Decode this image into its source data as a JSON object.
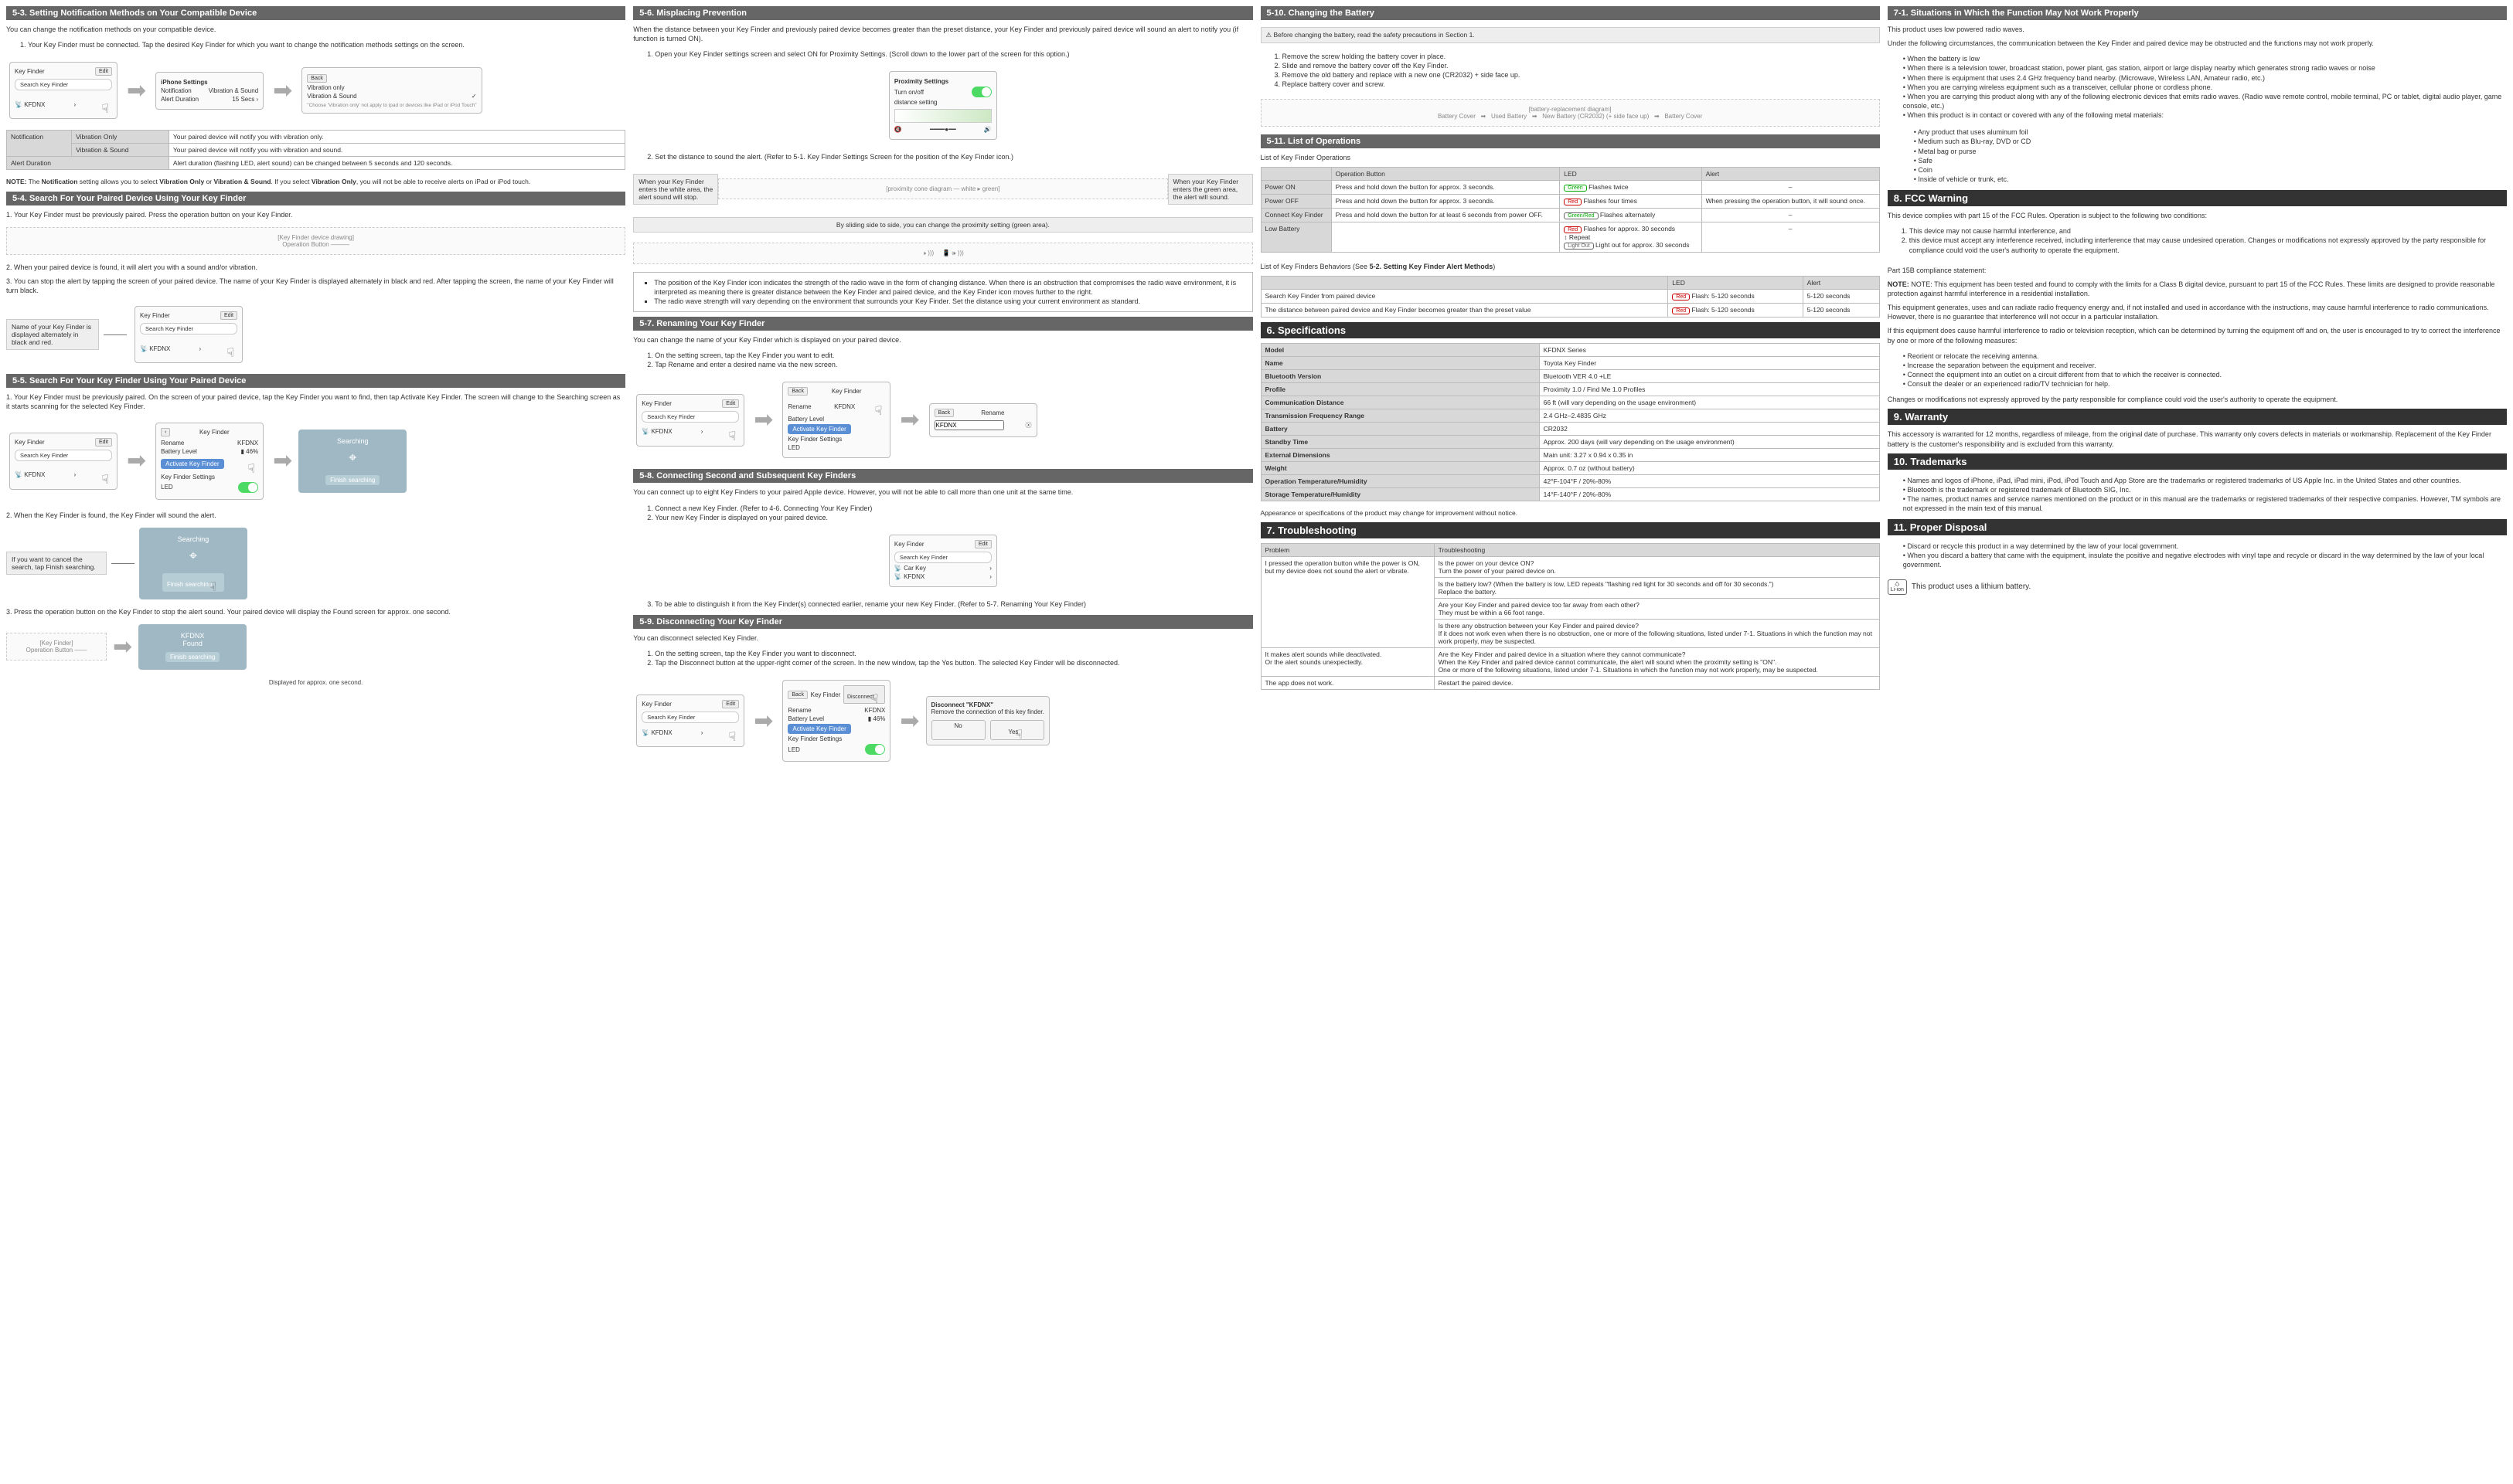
{
  "col1": {
    "s5_3": {
      "header": "5-3. Setting Notification Methods on Your Compatible Device",
      "intro": "You can change the notification methods on your compatible device.",
      "step1": "Your Key Finder must be connected. Tap the desired Key Finder for which you want to change the notification methods settings on the screen.",
      "mock1": {
        "title": "Key Finder",
        "edit": "Edit",
        "search": "Search Key Finder",
        "item": "KFDNX"
      },
      "mock2": {
        "title": "iPhone Settings",
        "notif": "Notification",
        "notif_val": "Vibration & Sound",
        "alert": "Alert Duration",
        "alert_val": "15 Secs"
      },
      "mock3": {
        "back": "Back",
        "opt1": "Vibration only",
        "opt2": "Vibration & Sound",
        "check": "✓",
        "note": "\"Choose 'Vibration only' not apply to ipad or devices like iPad or iPod Touch\""
      },
      "table": {
        "r1c1": "Notification",
        "r1c2": "Vibration Only",
        "r1c3": "Your paired device will notify you with vibration only.",
        "r2c2": "Vibration & Sound",
        "r2c3": "Your paired device will notify you with vibration and sound.",
        "r3c1": "Alert Duration",
        "r3c3": "Alert duration (flashing LED, alert sound) can be changed between 5 seconds and 120 seconds."
      },
      "note": "NOTE: The Notification setting allows you to select Vibration Only or Vibration & Sound. If you select Vibration Only, you will not be able to receive alerts on iPad or iPod touch."
    },
    "s5_4": {
      "header": "5-4. Search For Your Paired Device Using Your Key Finder",
      "step1": "Your Key Finder must be previously paired. Press the operation button on your Key Finder.",
      "label1": "Operation Button",
      "step2": "When your paired device is found, it will alert you with a sound and/or vibration.",
      "step3": "You can stop the alert by tapping the screen of your paired device. The name of your Key Finder is displayed alternately in black and red. After tapping the screen, the name of your Key Finder will turn black.",
      "label2": "Name of your Key Finder is displayed alternately in black and red.",
      "mock": {
        "title": "Key Finder",
        "edit": "Edit",
        "search": "Search Key Finder",
        "item": "KFDNX"
      }
    },
    "s5_5": {
      "header": "5-5. Search For Your Key Finder Using Your Paired Device",
      "step1": "Your Key Finder must be previously paired. On the screen of your paired device, tap the Key Finder you want to find, then tap Activate Key Finder. The screen will change to the Searching screen as it starts scanning for the selected Key Finder.",
      "mock1": {
        "title": "Key Finder",
        "edit": "Edit",
        "search": "Search Key Finder",
        "item": "KFDNX"
      },
      "mock2": {
        "title": "Key Finder",
        "rename": "Rename",
        "name": "KFDNX",
        "batt": "Battery Level",
        "batt_val": "46%",
        "activate": "Activate Key Finder",
        "kfs": "Key Finder Settings",
        "led": "LED"
      },
      "searching": {
        "title": "Searching",
        "finish": "Finish searching"
      },
      "step2": "When the Key Finder is found, the Key Finder will sound the alert.",
      "cancel_note": "If you want to cancel the search, tap Finish searching.",
      "step3": "Press the operation button on the Key Finder to stop the alert sound. Your paired device will display the Found screen for approx. one second.",
      "op_label": "Operation Button",
      "found": {
        "title": "KFDNX",
        "sub": "Found",
        "finish": "Finish searching"
      },
      "disp": "Displayed for approx. one second."
    }
  },
  "col2": {
    "s5_6": {
      "header": "5-6. Misplacing Prevention",
      "intro": "When the distance between your Key Finder and previously paired device becomes greater than the preset distance, your Key Finder and previously paired device will sound an alert to notify you (if function is turned ON).",
      "step1": "Open your Key Finder settings screen and select ON for Proximity Settings. (Scroll down to the lower part of the screen for this option.)",
      "mock": {
        "prox": "Proximity Settings",
        "turn": "Turn on/off",
        "dist": "distance setting"
      },
      "step2": "Set the distance to sound the alert. (Refer to 5-1. Key Finder Settings Screen for the position of the Key Finder icon.)",
      "box_left": "When your Key Finder enters the white area, the alert sound will stop.",
      "box_right": "When your Key Finder enters the green area, the alert will sound.",
      "slide_caption": "By sliding side to side, you can change the proximity setting (green area).",
      "bullets": {
        "b1": "The position of the Key Finder icon indicates the strength of the radio wave in the form of changing distance. When there is an obstruction that compromises the radio wave environment, it is interpreted as meaning there is greater distance between the Key Finder and paired device, and the Key Finder icon moves further to the right.",
        "b2": "The radio wave strength will vary depending on the environment that surrounds your Key Finder. Set the distance using your current environment as standard."
      }
    },
    "s5_7": {
      "header": "5-7. Renaming Your Key Finder",
      "intro": "You can change the name of your Key Finder which is displayed on your paired device.",
      "step1": "On the setting screen, tap the Key Finder you want to edit.",
      "step2": "Tap Rename and enter a desired name via the new screen.",
      "mock1": {
        "title": "Key Finder",
        "edit": "Edit",
        "search": "Search Key Finder",
        "item": "KFDNX"
      },
      "mock2": {
        "back": "Back",
        "title": "Key Finder",
        "rename": "Rename",
        "name": "KFDNX",
        "batt": "Battery Level",
        "activate": "Activate Key Finder",
        "kfs": "Key Finder Settings",
        "led": "LED"
      },
      "mock3": {
        "back": "Back",
        "title": "Rename",
        "field": "KFDNX"
      }
    },
    "s5_8": {
      "header": "5-8. Connecting Second and Subsequent Key Finders",
      "intro": "You can connect up to eight Key Finders to your paired Apple device. However, you will not be able to call more than one unit at the same time.",
      "step1": "Connect a new Key Finder. (Refer to 4-6. Connecting Your Key Finder)",
      "step2": "Your new Key Finder is displayed on your paired device.",
      "mock": {
        "title": "Key Finder",
        "edit": "Edit",
        "search": "Search Key Finder",
        "item1": "Car Key",
        "item2": "KFDNX"
      },
      "step3": "To be able to distinguish it from the Key Finder(s) connected earlier, rename your new Key Finder. (Refer to 5-7. Renaming Your Key Finder)"
    },
    "s5_9": {
      "header": "5-9. Disconnecting Your Key Finder",
      "intro": "You can disconnect selected Key Finder.",
      "step1": "On the setting screen, tap the Key Finder you want to disconnect.",
      "step2": "Tap the Disconnect button at the upper-right corner of the screen. In the new window, tap the Yes button. The selected Key Finder will be disconnected.",
      "mock1": {
        "title": "Key Finder",
        "edit": "Edit",
        "search": "Search Key Finder",
        "item": "KFDNX"
      },
      "mock2": {
        "back": "Back",
        "title": "Key Finder",
        "disc": "Disconnect",
        "rename": "Rename",
        "name": "KFDNX",
        "batt": "Battery Level",
        "batt_val": "46%",
        "activate": "Activate Key Finder",
        "kfs": "Key Finder Settings",
        "led": "LED"
      },
      "dialog": {
        "title": "Disconnect \"KFDNX\"",
        "msg": "Remove the connection of this key finder.",
        "no": "No",
        "yes": "Yes"
      }
    }
  },
  "col3": {
    "s5_10": {
      "header": "5-10. Changing the Battery",
      "warn": "Before changing the battery, read the safety precautions in Section 1.",
      "steps": [
        "Remove the screw holding the battery cover in place.",
        "Slide and remove the battery cover off the Key Finder.",
        "Remove the old battery and replace with a new one (CR2032) + side face up.",
        "Replace battery cover and screw."
      ],
      "labels": {
        "l1": "Battery Cover",
        "l2": "Used Battery",
        "l3": "New Battery (CR2032) (+ side face up)",
        "l4": "Battery Cover"
      }
    },
    "s5_11": {
      "header": "5-11. List of Operations",
      "t1_caption": "List of Key Finder Operations",
      "t1": {
        "h1": "Operation Button",
        "h2": "LED",
        "h3": "Alert",
        "r1": {
          "c0": "Power ON",
          "c1": "Press and hold down the button for approx. 3 seconds.",
          "led": "Green",
          "c2": "Flashes twice",
          "c3": "–"
        },
        "r2": {
          "c0": "Power OFF",
          "c1": "Press and hold down the button for approx. 3 seconds.",
          "led": "Red",
          "c2": "Flashes four times",
          "c3": "When pressing the operation button, it will sound once."
        },
        "r3": {
          "c0": "Connect Key Finder",
          "c1": "Press and hold down the button for at least 6 seconds from power OFF.",
          "led": "Green/Red",
          "c2": "Flashes alternately",
          "c3": "–"
        },
        "r4": {
          "c0": "Low Battery",
          "c1": "",
          "led1": "Red",
          "c2a": "Flashes for approx. 30 seconds",
          "rep": "↕ Repeat",
          "led2": "Light Out",
          "c2b": "Light out for approx. 30 seconds",
          "c3": "–"
        }
      },
      "t2_caption": "List of Key Finders Behaviors (See 5-2. Setting Key Finder Alert Methods)",
      "t2": {
        "h2": "LED",
        "h3": "Alert",
        "r1": {
          "c1": "Search Key Finder from paired device",
          "led": "Red",
          "c2": "Flash: 5-120 seconds",
          "c3": "5-120 seconds"
        },
        "r2": {
          "c1": "The distance between paired device and Key Finder becomes greater than the preset value",
          "led": "Red",
          "c2": "Flash: 5-120 seconds",
          "c3": "5-120 seconds"
        }
      }
    },
    "s6": {
      "header": "6. Specifications",
      "rows": [
        [
          "Model",
          "KFDNX Series"
        ],
        [
          "Name",
          "Toyota Key Finder"
        ],
        [
          "Bluetooth Version",
          "Bluetooth VER 4.0 +LE"
        ],
        [
          "Profile",
          "Proximity 1.0 / Find Me 1.0 Profiles"
        ],
        [
          "Communication Distance",
          "66 ft (will vary depending on the usage environment)"
        ],
        [
          "Transmission Frequency Range",
          "2.4 GHz–2.4835 GHz"
        ],
        [
          "Battery",
          "CR2032"
        ],
        [
          "Standby Time",
          "Approx. 200 days (will vary depending on the usage environment)"
        ],
        [
          "External Dimensions",
          "Main unit: 3.27 x 0.94 x 0.35 in"
        ],
        [
          "Weight",
          "Approx. 0.7 oz (without battery)"
        ],
        [
          "Operation Temperature/Humidity",
          "42°F-104°F / 20%-80%"
        ],
        [
          "Storage Temperature/Humidity",
          "14°F-140°F / 20%-80%"
        ]
      ],
      "footer": "Appearance or specifications of the product may change for improvement without notice."
    },
    "s7": {
      "header": "7. Troubleshooting",
      "h1": "Problem",
      "h2": "Troubleshooting",
      "r1": {
        "p": "I pressed the operation button while the power is ON, but my device does not sound the alert or vibrate.",
        "a1": "Is the power on your device ON?\nTurn the power of your paired device on.",
        "a2": "Is the battery low? (When the battery is low, LED repeats \"flashing red light for 30 seconds and off for 30 seconds.\")\nReplace the battery.",
        "a3": "Are your Key Finder and paired device too far away from each other?\nThey must be within a 66 foot range.",
        "a4": "Is there any obstruction between your Key Finder and paired device?\nIf it does not work even when there is no obstruction, one or more of the following situations, listed under 7-1. Situations in which the function may not work properly, may be suspected."
      },
      "r2": {
        "p": "It makes alert sounds while deactivated.\nOr the alert sounds unexpectedly.",
        "a1": "Are the Key Finder and paired device in a situation where they cannot communicate?\nWhen the Key Finder and paired device cannot communicate, the alert will sound when the proximity setting is \"ON\".\nOne or more of the following situations, listed under 7-1. Situations in which the function may not work properly, may be suspected."
      },
      "r3": {
        "p": "The app does not work.",
        "a1": "Restart the paired device."
      }
    }
  },
  "col4": {
    "s7_1": {
      "header": "7-1. Situations in Which the Function May Not Work Properly",
      "p1": "This product uses low powered radio waves.",
      "p2": "Under the following circumstances, the communication between the Key Finder and paired device may be obstructed and the functions may not work properly.",
      "b": [
        "When the battery is low",
        "When there is a television tower, broadcast station, power plant, gas station, airport or large display nearby which generates strong radio waves or noise",
        "When there is equipment that uses 2.4 GHz frequency band nearby. (Microwave, Wireless LAN, Amateur radio, etc.)",
        "When you are carrying wireless equipment such as a transceiver, cellular phone or cordless phone.",
        "When you are carrying this product along with any of the following electronic devices that emits radio waves. (Radio wave remote control, mobile terminal, PC or tablet, digital audio player, game console, etc.)",
        "When this product is in contact or covered with any of the following metal materials:"
      ],
      "sub": [
        "Any product that uses aluminum foil",
        "Medium such as Blu-ray, DVD or CD",
        "Metal bag or purse",
        "Safe",
        "Coin",
        "Inside of vehicle or trunk, etc."
      ]
    },
    "s8": {
      "header": "8. FCC Warning",
      "p1": "This device complies with part 15 of the FCC Rules. Operation is subject to the following two conditions:",
      "ol": [
        "This device may not cause harmful interference, and",
        "this device must accept any interference received, including interference that may cause undesired operation. Changes or modifications not expressly approved by the party responsible for compliance could void the user's authority to operate the equipment."
      ],
      "p2": "Part 15B compliance statement:",
      "p3": "NOTE: This equipment has been tested and found to comply with the limits for a Class B digital device, pursuant to part 15 of the FCC Rules. These limits are designed to provide reasonable protection against harmful interference in a residential installation.",
      "p4": "This equipment generates, uses and can radiate radio frequency energy and, if not installed and used in accordance with the instructions, may cause harmful interference to radio communications. However, there is no guarantee that interference will not occur in a particular installation.",
      "p5": "If this equipment does cause harmful interference to radio or television reception, which can be determined by turning the equipment off and on, the user is encouraged to try to correct the interference by one or more of the following measures:",
      "b": [
        "Reorient or relocate the receiving antenna.",
        "Increase the separation between the equipment and receiver.",
        "Connect the equipment into an outlet on a circuit different from that to which the receiver is connected.",
        "Consult the dealer or an experienced radio/TV technician for help."
      ],
      "p6": "Changes or modifications not expressly approved by the party responsible for compliance could void the user's authority to operate the equipment."
    },
    "s9": {
      "header": "9. Warranty",
      "p": "This accessory is warranted for 12 months, regardless of mileage, from the original date of purchase. This warranty only covers defects in materials or workmanship. Replacement of the Key Finder battery is the customer's responsibility and is excluded from this warranty."
    },
    "s10": {
      "header": "10. Trademarks",
      "b": [
        "Names and logos of iPhone, iPad, iPad mini, iPod, iPod Touch and App Store are the trademarks or registered trademarks of US Apple Inc. in the United States and other countries.",
        "Bluetooth is the trademark or registered trademark of Bluetooth SIG, Inc.",
        "The names, product names and service names mentioned on the product or in this manual are the trademarks or registered trademarks of their respective companies. However, TM symbols are not expressed in the main text of this manual."
      ]
    },
    "s11": {
      "header": "11. Proper Disposal",
      "b": [
        "Discard or recycle this product in a way determined by the law of your local government.",
        "When you discard a battery that came with the equipment, insulate the positive and negative electrodes with vinyl tape and recycle or discard in the way determined by the law of your local government."
      ],
      "icon": "This product uses a lithium battery.",
      "icon_sub": "Li-ion"
    }
  }
}
